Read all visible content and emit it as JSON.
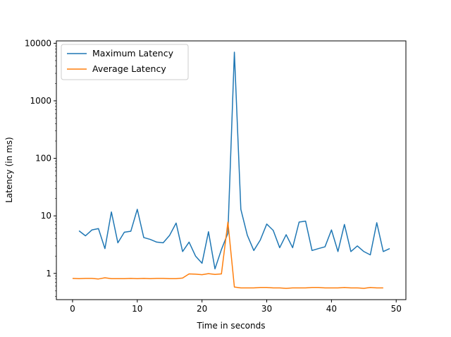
{
  "chart_data": {
    "type": "line",
    "title": "",
    "xlabel": "Time in seconds",
    "ylabel": "Latency (in ms)",
    "xlim": [
      -2.5,
      51.5
    ],
    "ylim": [
      0.35,
      11000
    ],
    "yscale": "log",
    "xticks": [
      0,
      10,
      20,
      30,
      40,
      50
    ],
    "yticks": [
      1,
      10,
      100,
      1000,
      10000
    ],
    "xtick_labels": [
      "0",
      "10",
      "20",
      "30",
      "40",
      "50"
    ],
    "ytick_labels": [
      "1",
      "10",
      "100",
      "1000",
      "10000"
    ],
    "grid": false,
    "legend_position": "upper-left",
    "series": [
      {
        "name": "Maximum Latency",
        "color": "#1f77b4",
        "x": [
          1,
          2,
          3,
          4,
          5,
          6,
          7,
          8,
          9,
          10,
          11,
          12,
          13,
          14,
          15,
          16,
          17,
          18,
          19,
          20,
          21,
          22,
          23,
          24,
          25,
          26,
          27,
          28,
          29,
          30,
          31,
          32,
          33,
          34,
          35,
          36,
          37,
          38,
          39,
          40,
          41,
          42,
          43,
          44,
          45,
          46,
          47,
          48,
          49
        ],
        "y": [
          5.5,
          4.5,
          5.7,
          6.0,
          2.7,
          11.7,
          3.4,
          5.2,
          5.4,
          13.0,
          4.2,
          3.9,
          3.5,
          3.4,
          4.6,
          7.5,
          2.4,
          3.5,
          2.0,
          1.5,
          5.3,
          1.2,
          2.6,
          5.0,
          7000,
          13.0,
          4.6,
          2.5,
          3.8,
          7.2,
          5.6,
          2.8,
          4.7,
          2.8,
          7.8,
          8.1,
          2.5,
          2.7,
          2.9,
          5.7,
          2.4,
          7.1,
          2.4,
          3.0,
          2.4,
          2.1,
          7.6,
          2.4,
          2.7
        ]
      },
      {
        "name": "Average Latency",
        "color": "#ff7f0e",
        "x": [
          0,
          1,
          2,
          3,
          4,
          5,
          6,
          7,
          8,
          9,
          10,
          11,
          12,
          13,
          14,
          15,
          16,
          17,
          18,
          19,
          20,
          21,
          22,
          23,
          24,
          25,
          26,
          27,
          28,
          29,
          30,
          31,
          32,
          33,
          34,
          35,
          36,
          37,
          38,
          39,
          40,
          41,
          42,
          43,
          44,
          45,
          46,
          47,
          48
        ],
        "y": [
          0.82,
          0.81,
          0.82,
          0.82,
          0.8,
          0.84,
          0.81,
          0.81,
          0.81,
          0.82,
          0.81,
          0.82,
          0.81,
          0.82,
          0.82,
          0.81,
          0.81,
          0.83,
          0.98,
          0.97,
          0.95,
          0.99,
          0.96,
          0.98,
          7.8,
          0.58,
          0.56,
          0.56,
          0.56,
          0.57,
          0.57,
          0.56,
          0.56,
          0.55,
          0.56,
          0.56,
          0.56,
          0.57,
          0.57,
          0.56,
          0.56,
          0.56,
          0.57,
          0.56,
          0.56,
          0.55,
          0.57,
          0.56,
          0.56
        ]
      }
    ]
  }
}
